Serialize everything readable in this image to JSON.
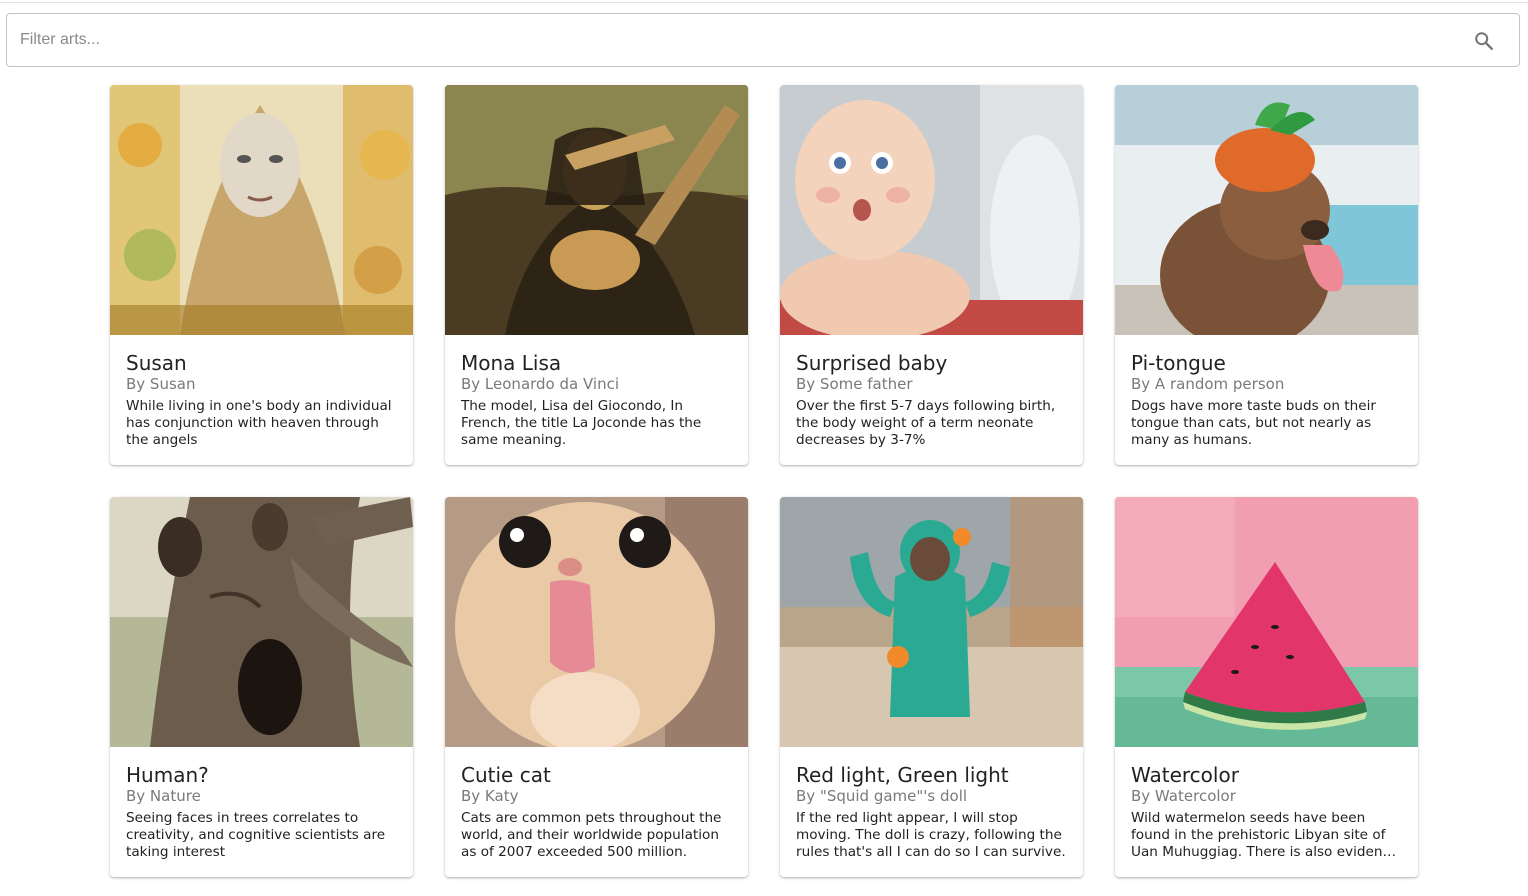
{
  "search": {
    "placeholder": "Filter arts...",
    "value": "",
    "icon": "search-icon"
  },
  "arts": [
    {
      "title": "Susan",
      "author": "By Susan",
      "description": "While living in one's body an individual has conjunction with heaven through the angels"
    },
    {
      "title": "Mona Lisa",
      "author": "By Leonardo da Vinci",
      "description": "The model, Lisa del Giocondo, In French, the title La Joconde has the same meaning."
    },
    {
      "title": "Surprised baby",
      "author": "By Some father",
      "description": "Over the first 5-7 days following birth, the body weight of a term neonate decreases by 3-7%"
    },
    {
      "title": "Pi-tongue",
      "author": "By A random person",
      "description": "Dogs have more taste buds on their tongue than cats, but not nearly as many as humans."
    },
    {
      "title": "Human?",
      "author": "By Nature",
      "description": "Seeing faces in trees correlates to creativity, and cognitive scientists are taking interest"
    },
    {
      "title": "Cutie cat",
      "author": "By Katy",
      "description": "Cats are common pets throughout the world, and their worldwide population as of 2007 exceeded 500 million."
    },
    {
      "title": "Red light, Green light",
      "author": "By \"Squid game\"'s doll",
      "description": "If the red light appear, I will stop moving. The doll is crazy, following the rules that's all I can do so I can survive."
    },
    {
      "title": "Watercolor",
      "author": "By Watercolor",
      "description": "Wild watermelon seeds have been found in the prehistoric Libyan site of Uan Muhuggiag. There is also evidence of watermelon cultivation"
    }
  ]
}
